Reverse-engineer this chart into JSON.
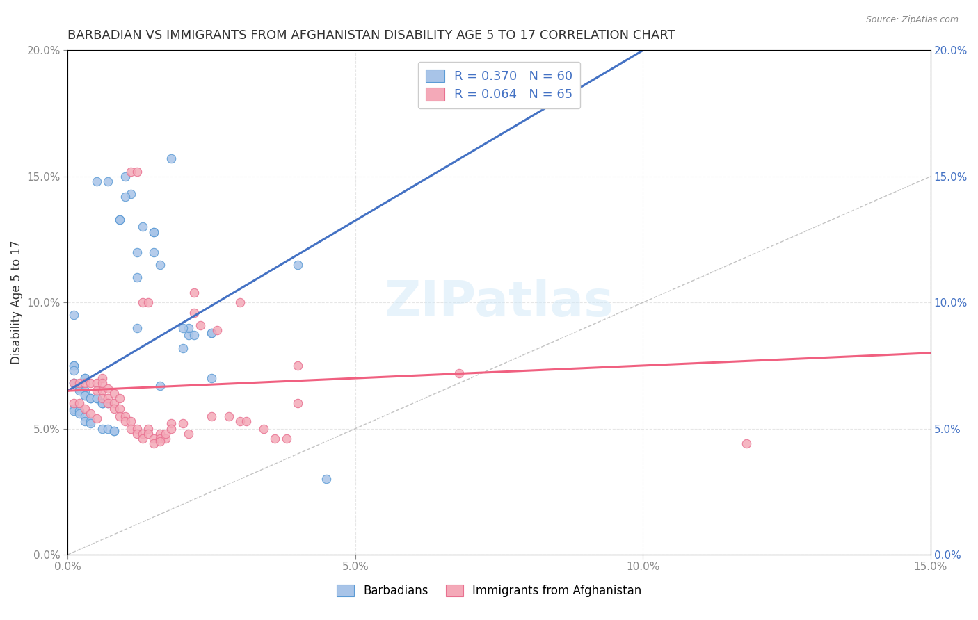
{
  "title": "BARBADIAN VS IMMIGRANTS FROM AFGHANISTAN DISABILITY AGE 5 TO 17 CORRELATION CHART",
  "source": "Source: ZipAtlas.com",
  "xlabel_ticks": [
    "0.0%",
    "5.0%",
    "10.0%",
    "15.0%"
  ],
  "ylabel_ticks": [
    "0.0%",
    "5.0%",
    "10.0%",
    "15.0%",
    "20.0%"
  ],
  "xlabel_label": "",
  "ylabel_label": "Disability Age 5 to 17",
  "xlim": [
    0.0,
    0.15
  ],
  "ylim": [
    0.0,
    0.2
  ],
  "diagonal_line": {
    "x": [
      0.0,
      0.2
    ],
    "y": [
      0.0,
      0.2
    ]
  },
  "legend": {
    "series1_label": "R = 0.370   N = 60",
    "series2_label": "R = 0.064   N = 65",
    "series1_color": "#a8c4e8",
    "series2_color": "#f4a9b8"
  },
  "trend1": {
    "slope": 1.35,
    "intercept": 0.065,
    "color": "#4472c4"
  },
  "trend2": {
    "slope": 0.1,
    "intercept": 0.065,
    "color": "#f06080"
  },
  "barbadians": [
    [
      0.001,
      0.095
    ],
    [
      0.005,
      0.148
    ],
    [
      0.007,
      0.148
    ],
    [
      0.01,
      0.15
    ],
    [
      0.011,
      0.143
    ],
    [
      0.01,
      0.142
    ],
    [
      0.013,
      0.13
    ],
    [
      0.018,
      0.157
    ],
    [
      0.009,
      0.133
    ],
    [
      0.009,
      0.133
    ],
    [
      0.015,
      0.128
    ],
    [
      0.015,
      0.128
    ],
    [
      0.012,
      0.12
    ],
    [
      0.015,
      0.12
    ],
    [
      0.016,
      0.115
    ],
    [
      0.012,
      0.11
    ],
    [
      0.021,
      0.087
    ],
    [
      0.021,
      0.09
    ],
    [
      0.02,
      0.09
    ],
    [
      0.012,
      0.09
    ],
    [
      0.025,
      0.088
    ],
    [
      0.025,
      0.088
    ],
    [
      0.022,
      0.087
    ],
    [
      0.02,
      0.082
    ],
    [
      0.001,
      0.075
    ],
    [
      0.001,
      0.075
    ],
    [
      0.001,
      0.073
    ],
    [
      0.003,
      0.07
    ],
    [
      0.003,
      0.07
    ],
    [
      0.001,
      0.068
    ],
    [
      0.001,
      0.068
    ],
    [
      0.002,
      0.066
    ],
    [
      0.002,
      0.065
    ],
    [
      0.003,
      0.065
    ],
    [
      0.003,
      0.063
    ],
    [
      0.003,
      0.063
    ],
    [
      0.004,
      0.062
    ],
    [
      0.004,
      0.062
    ],
    [
      0.005,
      0.062
    ],
    [
      0.005,
      0.062
    ],
    [
      0.006,
      0.06
    ],
    [
      0.006,
      0.06
    ],
    [
      0.006,
      0.06
    ],
    [
      0.007,
      0.06
    ],
    [
      0.001,
      0.058
    ],
    [
      0.001,
      0.057
    ],
    [
      0.002,
      0.057
    ],
    [
      0.002,
      0.056
    ],
    [
      0.003,
      0.055
    ],
    [
      0.003,
      0.053
    ],
    [
      0.004,
      0.053
    ],
    [
      0.004,
      0.052
    ],
    [
      0.006,
      0.05
    ],
    [
      0.007,
      0.05
    ],
    [
      0.008,
      0.049
    ],
    [
      0.008,
      0.049
    ],
    [
      0.016,
      0.067
    ],
    [
      0.025,
      0.07
    ],
    [
      0.04,
      0.115
    ],
    [
      0.045,
      0.03
    ]
  ],
  "immigrants_afghanistan": [
    [
      0.001,
      0.068
    ],
    [
      0.002,
      0.068
    ],
    [
      0.003,
      0.068
    ],
    [
      0.004,
      0.068
    ],
    [
      0.005,
      0.068
    ],
    [
      0.005,
      0.065
    ],
    [
      0.006,
      0.065
    ],
    [
      0.006,
      0.062
    ],
    [
      0.007,
      0.062
    ],
    [
      0.007,
      0.06
    ],
    [
      0.008,
      0.06
    ],
    [
      0.008,
      0.058
    ],
    [
      0.009,
      0.058
    ],
    [
      0.009,
      0.055
    ],
    [
      0.01,
      0.055
    ],
    [
      0.01,
      0.053
    ],
    [
      0.011,
      0.053
    ],
    [
      0.011,
      0.05
    ],
    [
      0.012,
      0.05
    ],
    [
      0.012,
      0.048
    ],
    [
      0.013,
      0.048
    ],
    [
      0.013,
      0.046
    ],
    [
      0.014,
      0.05
    ],
    [
      0.014,
      0.048
    ],
    [
      0.015,
      0.046
    ],
    [
      0.015,
      0.044
    ],
    [
      0.016,
      0.048
    ],
    [
      0.016,
      0.046
    ],
    [
      0.017,
      0.046
    ],
    [
      0.017,
      0.048
    ],
    [
      0.018,
      0.052
    ],
    [
      0.018,
      0.05
    ],
    [
      0.001,
      0.06
    ],
    [
      0.002,
      0.06
    ],
    [
      0.003,
      0.058
    ],
    [
      0.004,
      0.056
    ],
    [
      0.005,
      0.054
    ],
    [
      0.006,
      0.07
    ],
    [
      0.006,
      0.068
    ],
    [
      0.007,
      0.066
    ],
    [
      0.008,
      0.064
    ],
    [
      0.009,
      0.062
    ],
    [
      0.011,
      0.152
    ],
    [
      0.012,
      0.152
    ],
    [
      0.013,
      0.1
    ],
    [
      0.014,
      0.1
    ],
    [
      0.022,
      0.104
    ],
    [
      0.022,
      0.096
    ],
    [
      0.023,
      0.091
    ],
    [
      0.026,
      0.089
    ],
    [
      0.03,
      0.1
    ],
    [
      0.03,
      0.053
    ],
    [
      0.031,
      0.053
    ],
    [
      0.034,
      0.05
    ],
    [
      0.036,
      0.046
    ],
    [
      0.038,
      0.046
    ],
    [
      0.04,
      0.06
    ],
    [
      0.04,
      0.075
    ],
    [
      0.068,
      0.072
    ],
    [
      0.118,
      0.044
    ],
    [
      0.016,
      0.045
    ],
    [
      0.02,
      0.052
    ],
    [
      0.021,
      0.048
    ],
    [
      0.025,
      0.055
    ],
    [
      0.028,
      0.055
    ]
  ],
  "watermark": "ZIPatlas",
  "background_color": "#ffffff",
  "grid_color": "#e0e0e0"
}
